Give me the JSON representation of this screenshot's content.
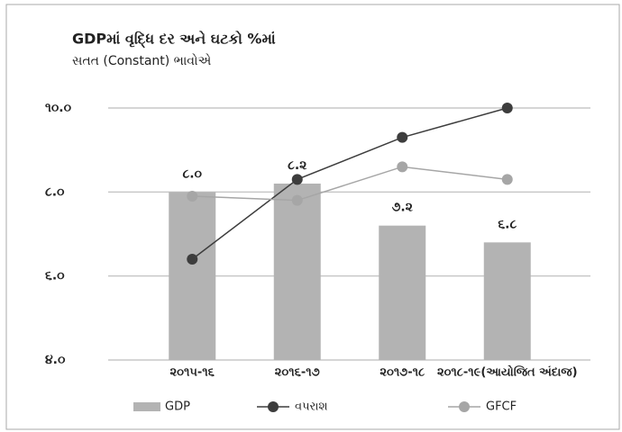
{
  "chart_data": {
    "type": "bar",
    "title": "GDPમાં વૃદ્ધિ દર અને ઘટકો %માં",
    "subtitle": "સતત (Constant) ભાવોએ",
    "categories": [
      "૨૦૧૫-૧૬",
      "૨૦૧૬-૧૭",
      "૨૦૧૭-૧૮",
      "૨૦૧૮-૧૯(આયોજિત અંદાજ)"
    ],
    "series": [
      {
        "name": "GDP",
        "type": "bar",
        "color": "#b3b3b3",
        "values": [
          8.0,
          8.2,
          7.2,
          6.8
        ],
        "value_labels": [
          "૮.૦",
          "૮.૨",
          "૭.૨",
          "૬.૮"
        ]
      },
      {
        "name": "વપરાશ",
        "type": "line",
        "color": "#3d3d3d",
        "values": [
          6.4,
          8.3,
          9.3,
          10.0
        ]
      },
      {
        "name": "GFCF",
        "type": "line",
        "color": "#a6a6a6",
        "values": [
          7.9,
          7.8,
          8.6,
          8.3
        ]
      }
    ],
    "ylim": [
      4,
      10
    ],
    "yticks": [
      {
        "value": 4,
        "label": "૪.૦"
      },
      {
        "value": 6,
        "label": "૬.૦"
      },
      {
        "value": 8,
        "label": "૮.૦"
      },
      {
        "value": 10,
        "label": "૧૦.૦"
      }
    ],
    "grid": true
  }
}
